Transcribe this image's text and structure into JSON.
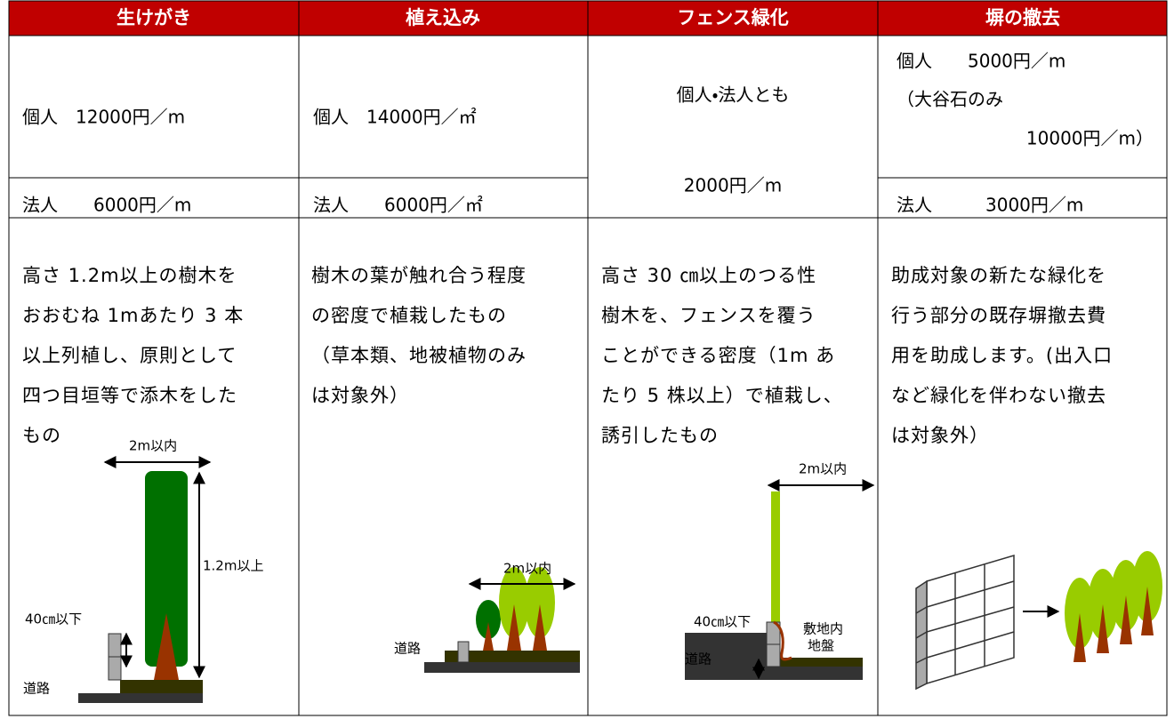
{
  "table": {
    "header": [
      "生けがき",
      "植え込み",
      "フェンス緑化",
      "塀の撤去"
    ],
    "prices": {
      "hedge": {
        "individual": "個人　12000円／m",
        "corporate": "法人　　6000円／m"
      },
      "planting": {
        "individual": "個人　14000円／㎡",
        "corporate": "法人　　6000円／㎡"
      },
      "fence": {
        "both": "個人・法人とも",
        "amount": "2000円／m"
      },
      "wall": {
        "individual": [
          "個人　　5000円／m",
          "（大谷石のみ",
          "10000円／m）"
        ],
        "corporate": "法人　　　3000円／m"
      }
    },
    "descriptions": [
      [
        "高さ 1.2m以上の樹木を",
        "おおむね 1mあたり 3 本",
        "以上列植し、原則として",
        "四つ目垣等で添木をした",
        "もの"
      ],
      [
        "樹木の葉が触れ合う程度",
        "の密度で植栽したもの",
        "（草本類、地被植物のみ",
        "は対象外）"
      ],
      [
        "高さ 30 ㎝以上のつる性",
        "樹木を、フェンスを覆う",
        "ことができる密度（1m あ",
        "たり 5 株以上）で植栽し、",
        "誘引したもの"
      ],
      [
        "助成対象の新たな緑化を",
        "行う部分の既存塀撤去費",
        "用を助成します。(出入口",
        "など緑化を伴わない撤去",
        "は対象外）"
      ]
    ]
  },
  "diagrams": {
    "hedge": {
      "width": "2m以内",
      "height": "1.2m以上",
      "fence": "40㎝以下",
      "road": "道路"
    },
    "planting": {
      "width": "2m以内",
      "road": "道路"
    },
    "fence": {
      "width": "2m以内",
      "base": "40㎝以下",
      "ground": [
        "敷地内",
        "地盤"
      ],
      "road": "道路"
    }
  }
}
